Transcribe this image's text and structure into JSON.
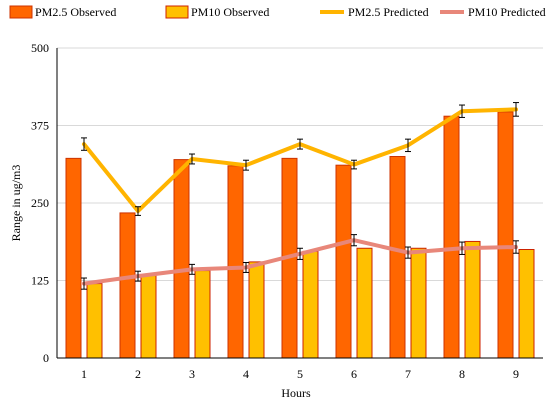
{
  "chart_data": {
    "type": "bar",
    "title": "",
    "xlabel": "Hours",
    "ylabel": "Range in ug/m3",
    "categories": [
      "1",
      "2",
      "3",
      "4",
      "5",
      "6",
      "7",
      "8",
      "9"
    ],
    "ylim": [
      0,
      500
    ],
    "yticks": [
      "0",
      "125",
      "250",
      "375",
      "500"
    ],
    "grid": "horizontal",
    "legend_position": "top",
    "series": [
      {
        "name": "PM2.5 Observed",
        "kind": "bar",
        "values": [
          322,
          234,
          320,
          310,
          322,
          311,
          325,
          390,
          397
        ],
        "color": "#ff6600",
        "stroke": "#cc3300"
      },
      {
        "name": "PM10 Observed",
        "kind": "bar",
        "values": [
          120,
          133,
          141,
          155,
          172,
          177,
          177,
          188,
          175
        ],
        "color": "#ffc000",
        "stroke": "#cc2200"
      },
      {
        "name": "PM2.5 Predicted",
        "kind": "line",
        "values": [
          345,
          237,
          321,
          311,
          345,
          312,
          343,
          398,
          401
        ],
        "errors": [
          10,
          7,
          8,
          8,
          8,
          7,
          10,
          10,
          11
        ],
        "color": "#ffb400"
      },
      {
        "name": "PM10 Predicted",
        "kind": "line",
        "values": [
          120,
          132,
          143,
          146,
          168,
          190,
          170,
          177,
          179
        ],
        "errors": [
          9,
          8,
          8,
          8,
          9,
          9,
          9,
          10,
          10
        ],
        "color": "#e8877a"
      }
    ]
  }
}
